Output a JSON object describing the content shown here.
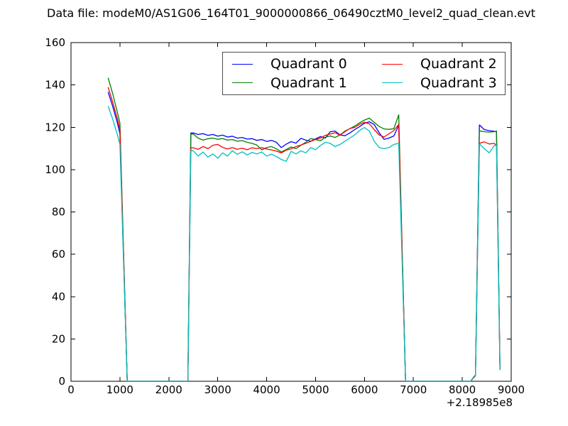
{
  "title": "Data file: modeM0/AS1G06_164T01_9000000866_06490cztM0_level2_quad_clean.evt",
  "chart_data": {
    "type": "line",
    "title": "Data file: modeM0/AS1G06_164T01_9000000866_06490cztM0_level2_quad_clean.evt",
    "xlabel": "",
    "ylabel": "",
    "x_offset_label": "+2.18985e8",
    "xlim": [
      0,
      9000
    ],
    "ylim": [
      0,
      160
    ],
    "x_ticks": [
      0,
      1000,
      2000,
      3000,
      4000,
      5000,
      6000,
      7000,
      8000,
      9000
    ],
    "y_ticks": [
      0,
      20,
      40,
      60,
      80,
      100,
      120,
      140,
      160
    ],
    "grid": false,
    "legend_position": "upper center",
    "legend_columns": 2,
    "x": [
      760,
      850,
      950,
      1000,
      1150,
      2390,
      2450,
      2500,
      2600,
      2700,
      2800,
      2900,
      3000,
      3100,
      3200,
      3300,
      3400,
      3500,
      3600,
      3700,
      3800,
      3900,
      4000,
      4100,
      4200,
      4300,
      4400,
      4500,
      4600,
      4700,
      4800,
      4900,
      5000,
      5100,
      5200,
      5300,
      5400,
      5500,
      5600,
      5700,
      5800,
      5900,
      6000,
      6100,
      6200,
      6300,
      6400,
      6500,
      6600,
      6700,
      6840,
      8170,
      8270,
      8350,
      8450,
      8550,
      8650,
      8700,
      8770
    ],
    "series": [
      {
        "name": "Quadrant 0",
        "color": "#0000ff",
        "y": [
          136.5,
          130,
          122,
          117,
          0,
          0,
          117.3,
          117.3,
          116.6,
          117.0,
          116.2,
          116.6,
          115.8,
          116.3,
          115.4,
          115.8,
          114.9,
          115.2,
          114.4,
          114.6,
          113.8,
          114.2,
          113.3,
          113.8,
          112.9,
          110.4,
          112.0,
          113.2,
          112.5,
          114.8,
          113.9,
          113.4,
          114.5,
          115.6,
          114.9,
          117.9,
          118.2,
          116.4,
          116.0,
          117.3,
          118.9,
          120.3,
          121.9,
          122.6,
          121.3,
          117.4,
          114.3,
          114.9,
          115.9,
          120.9,
          0,
          0,
          3,
          121.1,
          118.9,
          118.4,
          118.1,
          117.9,
          6
        ]
      },
      {
        "name": "Quadrant 1",
        "color": "#007f00",
        "y": [
          143.2,
          136,
          127,
          122,
          0,
          0,
          116.8,
          116.8,
          114.9,
          113.9,
          114.6,
          114.9,
          114.3,
          114.7,
          113.9,
          114.2,
          113.4,
          113.7,
          112.9,
          112.4,
          111.6,
          109.3,
          110.4,
          110.9,
          109.8,
          108.3,
          109.5,
          110.7,
          109.9,
          111.5,
          112.9,
          114.7,
          114.2,
          113.6,
          115.3,
          115.9,
          115.2,
          116.4,
          118.2,
          119.3,
          120.6,
          122.1,
          123.4,
          124.3,
          122.3,
          120.4,
          119.2,
          119.0,
          119.3,
          125.9,
          0,
          0,
          3,
          118.3,
          117.9,
          117.7,
          117.9,
          118.2,
          6
        ]
      },
      {
        "name": "Quadrant 2",
        "color": "#ff0000",
        "y": [
          138.8,
          132,
          124,
          119,
          0,
          0,
          110.3,
          110.3,
          109.6,
          110.9,
          109.9,
          111.5,
          111.9,
          110.5,
          109.8,
          110.4,
          109.6,
          110.1,
          109.4,
          110.3,
          109.9,
          110.4,
          109.7,
          109.3,
          108.7,
          107.9,
          109.2,
          109.8,
          110.9,
          111.6,
          112.4,
          113.3,
          114.2,
          114.9,
          116.2,
          116.8,
          117.4,
          116.3,
          117.9,
          119.4,
          119.9,
          121.4,
          122.4,
          121.6,
          118.9,
          116.4,
          115.4,
          116.9,
          118.4,
          121.4,
          0,
          0,
          3,
          112.4,
          113.1,
          112.1,
          112.4,
          111.4,
          5.5
        ]
      },
      {
        "name": "Quadrant 3",
        "color": "#00bfbf",
        "y": [
          129.8,
          124,
          116.5,
          112,
          0,
          0,
          108.9,
          108.9,
          106.4,
          108.3,
          105.9,
          107.4,
          105.4,
          107.9,
          106.4,
          108.9,
          107.2,
          108.4,
          106.9,
          108.1,
          107.4,
          108.3,
          106.4,
          107.3,
          106.2,
          104.8,
          103.9,
          108.6,
          107.4,
          108.9,
          107.9,
          110.4,
          109.4,
          111.4,
          112.9,
          112.4,
          110.9,
          111.9,
          113.4,
          114.9,
          116.4,
          118.4,
          119.9,
          118.2,
          113.4,
          110.4,
          109.9,
          110.4,
          111.9,
          112.4,
          0,
          0,
          2.5,
          112.2,
          109.9,
          107.9,
          111.2,
          111.6,
          5.5
        ]
      }
    ]
  }
}
